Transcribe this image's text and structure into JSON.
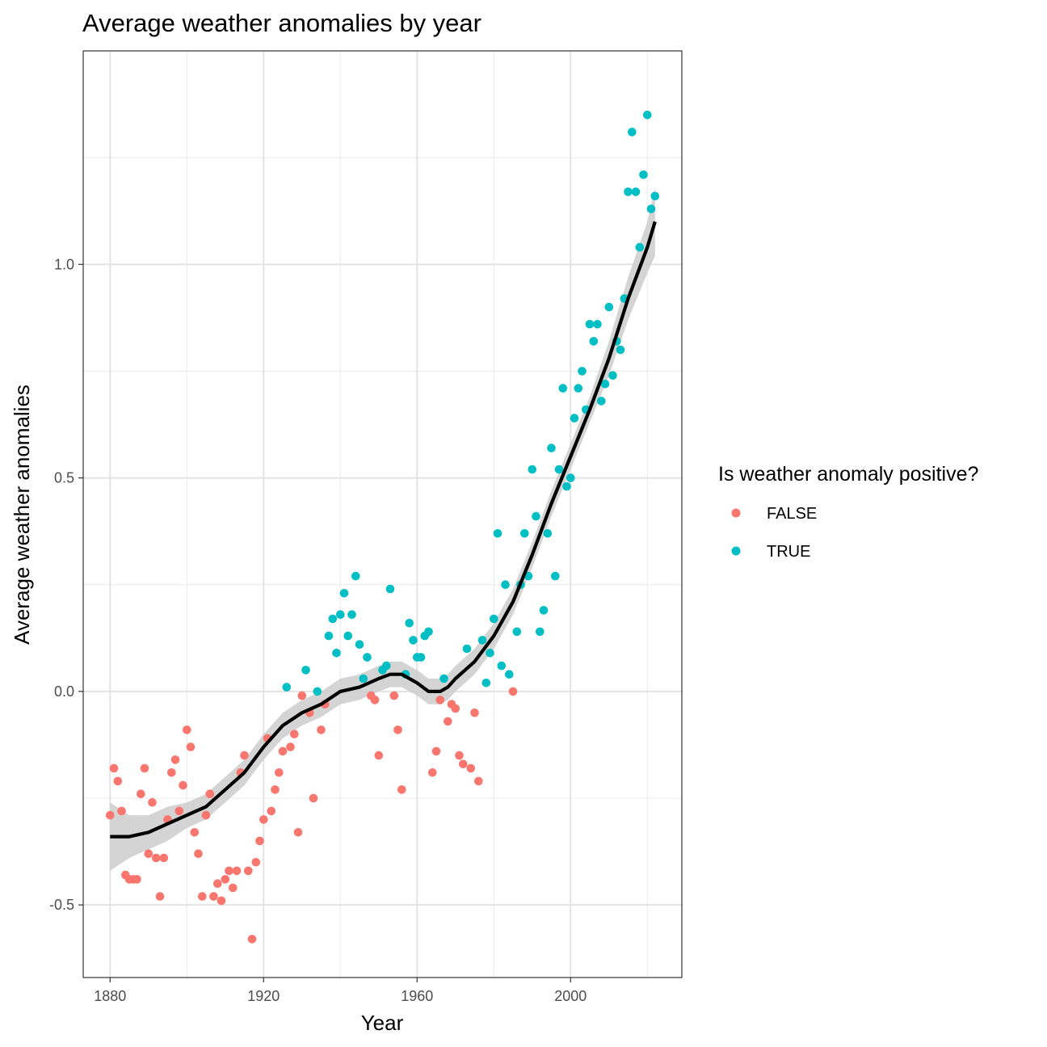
{
  "chart_data": {
    "type": "scatter",
    "title": "Average weather anomalies by year",
    "xlabel": "Year",
    "ylabel": "Average weather anomalies",
    "xlim": [
      1873,
      2029
    ],
    "ylim": [
      -0.67,
      1.5
    ],
    "xticks": [
      1880,
      1920,
      1960,
      2000
    ],
    "xtick_labels": [
      "1880",
      "1920",
      "1960",
      "2000"
    ],
    "yticks": [
      -0.5,
      0.0,
      0.5,
      1.0
    ],
    "ytick_labels": [
      "-0.5",
      "0.0",
      "0.5",
      "1.0"
    ],
    "grid": true,
    "legend": {
      "title": "Is weather anomaly positive?",
      "position": "right",
      "entries": [
        {
          "label": "FALSE",
          "color": "#F8766D"
        },
        {
          "label": "TRUE",
          "color": "#00BFC4"
        }
      ]
    },
    "series": [
      {
        "name": "FALSE",
        "color": "#F8766D",
        "points": [
          [
            1880,
            -0.29
          ],
          [
            1881,
            -0.18
          ],
          [
            1882,
            -0.21
          ],
          [
            1883,
            -0.28
          ],
          [
            1884,
            -0.43
          ],
          [
            1885,
            -0.44
          ],
          [
            1886,
            -0.44
          ],
          [
            1887,
            -0.44
          ],
          [
            1888,
            -0.24
          ],
          [
            1889,
            -0.18
          ],
          [
            1890,
            -0.38
          ],
          [
            1891,
            -0.26
          ],
          [
            1892,
            -0.39
          ],
          [
            1893,
            -0.48
          ],
          [
            1894,
            -0.39
          ],
          [
            1895,
            -0.3
          ],
          [
            1896,
            -0.19
          ],
          [
            1897,
            -0.16
          ],
          [
            1898,
            -0.28
          ],
          [
            1899,
            -0.22
          ],
          [
            1900,
            -0.09
          ],
          [
            1901,
            -0.13
          ],
          [
            1902,
            -0.33
          ],
          [
            1903,
            -0.38
          ],
          [
            1904,
            -0.48
          ],
          [
            1905,
            -0.29
          ],
          [
            1906,
            -0.24
          ],
          [
            1907,
            -0.48
          ],
          [
            1908,
            -0.45
          ],
          [
            1909,
            -0.49
          ],
          [
            1910,
            -0.44
          ],
          [
            1911,
            -0.42
          ],
          [
            1912,
            -0.46
          ],
          [
            1913,
            -0.42
          ],
          [
            1914,
            -0.19
          ],
          [
            1915,
            -0.15
          ],
          [
            1916,
            -0.42
          ],
          [
            1917,
            -0.58
          ],
          [
            1918,
            -0.4
          ],
          [
            1919,
            -0.35
          ],
          [
            1920,
            -0.3
          ],
          [
            1921,
            -0.11
          ],
          [
            1922,
            -0.28
          ],
          [
            1923,
            -0.23
          ],
          [
            1924,
            -0.19
          ],
          [
            1925,
            -0.14
          ],
          [
            1927,
            -0.13
          ],
          [
            1928,
            -0.1
          ],
          [
            1929,
            -0.33
          ],
          [
            1930,
            -0.01
          ],
          [
            1932,
            -0.05
          ],
          [
            1933,
            -0.25
          ],
          [
            1935,
            -0.09
          ],
          [
            1936,
            -0.03
          ],
          [
            1948,
            -0.01
          ],
          [
            1949,
            -0.02
          ],
          [
            1950,
            -0.15
          ],
          [
            1954,
            -0.01
          ],
          [
            1955,
            -0.09
          ],
          [
            1956,
            -0.23
          ],
          [
            1964,
            -0.19
          ],
          [
            1965,
            -0.14
          ],
          [
            1966,
            -0.02
          ],
          [
            1968,
            -0.07
          ],
          [
            1969,
            -0.03
          ],
          [
            1970,
            -0.04
          ],
          [
            1971,
            -0.15
          ],
          [
            1972,
            -0.17
          ],
          [
            1974,
            -0.18
          ],
          [
            1975,
            -0.05
          ],
          [
            1976,
            -0.21
          ],
          [
            1985,
            -0.0
          ]
        ]
      },
      {
        "name": "TRUE",
        "color": "#00BFC4",
        "points": [
          [
            1926,
            0.01
          ],
          [
            1931,
            0.05
          ],
          [
            1934,
            0.0
          ],
          [
            1937,
            0.13
          ],
          [
            1938,
            0.17
          ],
          [
            1939,
            0.09
          ],
          [
            1940,
            0.18
          ],
          [
            1941,
            0.23
          ],
          [
            1942,
            0.13
          ],
          [
            1943,
            0.18
          ],
          [
            1944,
            0.27
          ],
          [
            1945,
            0.11
          ],
          [
            1946,
            0.03
          ],
          [
            1947,
            0.08
          ],
          [
            1951,
            0.05
          ],
          [
            1952,
            0.06
          ],
          [
            1953,
            0.24
          ],
          [
            1957,
            0.04
          ],
          [
            1958,
            0.16
          ],
          [
            1959,
            0.12
          ],
          [
            1960,
            0.08
          ],
          [
            1961,
            0.08
          ],
          [
            1962,
            0.13
          ],
          [
            1963,
            0.14
          ],
          [
            1967,
            0.03
          ],
          [
            1973,
            0.1
          ],
          [
            1977,
            0.12
          ],
          [
            1978,
            0.02
          ],
          [
            1979,
            0.09
          ],
          [
            1980,
            0.17
          ],
          [
            1981,
            0.37
          ],
          [
            1982,
            0.06
          ],
          [
            1983,
            0.25
          ],
          [
            1984,
            0.04
          ],
          [
            1986,
            0.14
          ],
          [
            1987,
            0.25
          ],
          [
            1988,
            0.37
          ],
          [
            1989,
            0.27
          ],
          [
            1990,
            0.52
          ],
          [
            1991,
            0.41
          ],
          [
            1992,
            0.14
          ],
          [
            1993,
            0.19
          ],
          [
            1994,
            0.37
          ],
          [
            1995,
            0.57
          ],
          [
            1996,
            0.27
          ],
          [
            1997,
            0.52
          ],
          [
            1998,
            0.71
          ],
          [
            1999,
            0.48
          ],
          [
            2000,
            0.5
          ],
          [
            2001,
            0.64
          ],
          [
            2002,
            0.71
          ],
          [
            2003,
            0.75
          ],
          [
            2004,
            0.66
          ],
          [
            2005,
            0.86
          ],
          [
            2006,
            0.82
          ],
          [
            2007,
            0.86
          ],
          [
            2008,
            0.68
          ],
          [
            2009,
            0.72
          ],
          [
            2010,
            0.9
          ],
          [
            2011,
            0.74
          ],
          [
            2012,
            0.82
          ],
          [
            2013,
            0.8
          ],
          [
            2014,
            0.92
          ],
          [
            2015,
            1.17
          ],
          [
            2016,
            1.31
          ],
          [
            2017,
            1.17
          ],
          [
            2018,
            1.04
          ],
          [
            2019,
            1.21
          ],
          [
            2020,
            1.35
          ],
          [
            2021,
            1.13
          ],
          [
            2022,
            1.16
          ]
        ]
      }
    ],
    "smooth": {
      "method": "loess",
      "color": "#000000",
      "ribbon_color": "#cccccc",
      "x": [
        1880,
        1885,
        1890,
        1895,
        1900,
        1905,
        1910,
        1915,
        1920,
        1925,
        1930,
        1935,
        1940,
        1945,
        1950,
        1953,
        1956,
        1960,
        1963,
        1966,
        1968,
        1970,
        1975,
        1980,
        1985,
        1990,
        1995,
        2000,
        2005,
        2010,
        2015,
        2020,
        2022
      ],
      "y": [
        -0.34,
        -0.34,
        -0.33,
        -0.31,
        -0.29,
        -0.27,
        -0.23,
        -0.19,
        -0.13,
        -0.08,
        -0.05,
        -0.03,
        0.0,
        0.01,
        0.03,
        0.04,
        0.04,
        0.02,
        0.0,
        0.0,
        0.01,
        0.03,
        0.07,
        0.13,
        0.21,
        0.32,
        0.44,
        0.55,
        0.66,
        0.78,
        0.92,
        1.04,
        1.1
      ],
      "ymin": [
        -0.42,
        -0.39,
        -0.37,
        -0.35,
        -0.32,
        -0.3,
        -0.26,
        -0.22,
        -0.16,
        -0.11,
        -0.08,
        -0.06,
        -0.03,
        -0.02,
        0.0,
        0.01,
        0.01,
        -0.01,
        -0.03,
        -0.03,
        -0.02,
        0.0,
        0.04,
        0.1,
        0.18,
        0.29,
        0.41,
        0.52,
        0.63,
        0.74,
        0.87,
        0.98,
        1.02
      ],
      "ymax": [
        -0.26,
        -0.29,
        -0.29,
        -0.27,
        -0.26,
        -0.24,
        -0.2,
        -0.16,
        -0.1,
        -0.05,
        -0.02,
        0.0,
        0.03,
        0.04,
        0.06,
        0.07,
        0.07,
        0.05,
        0.03,
        0.03,
        0.04,
        0.06,
        0.1,
        0.16,
        0.24,
        0.35,
        0.47,
        0.58,
        0.69,
        0.82,
        0.97,
        1.1,
        1.18
      ]
    }
  }
}
